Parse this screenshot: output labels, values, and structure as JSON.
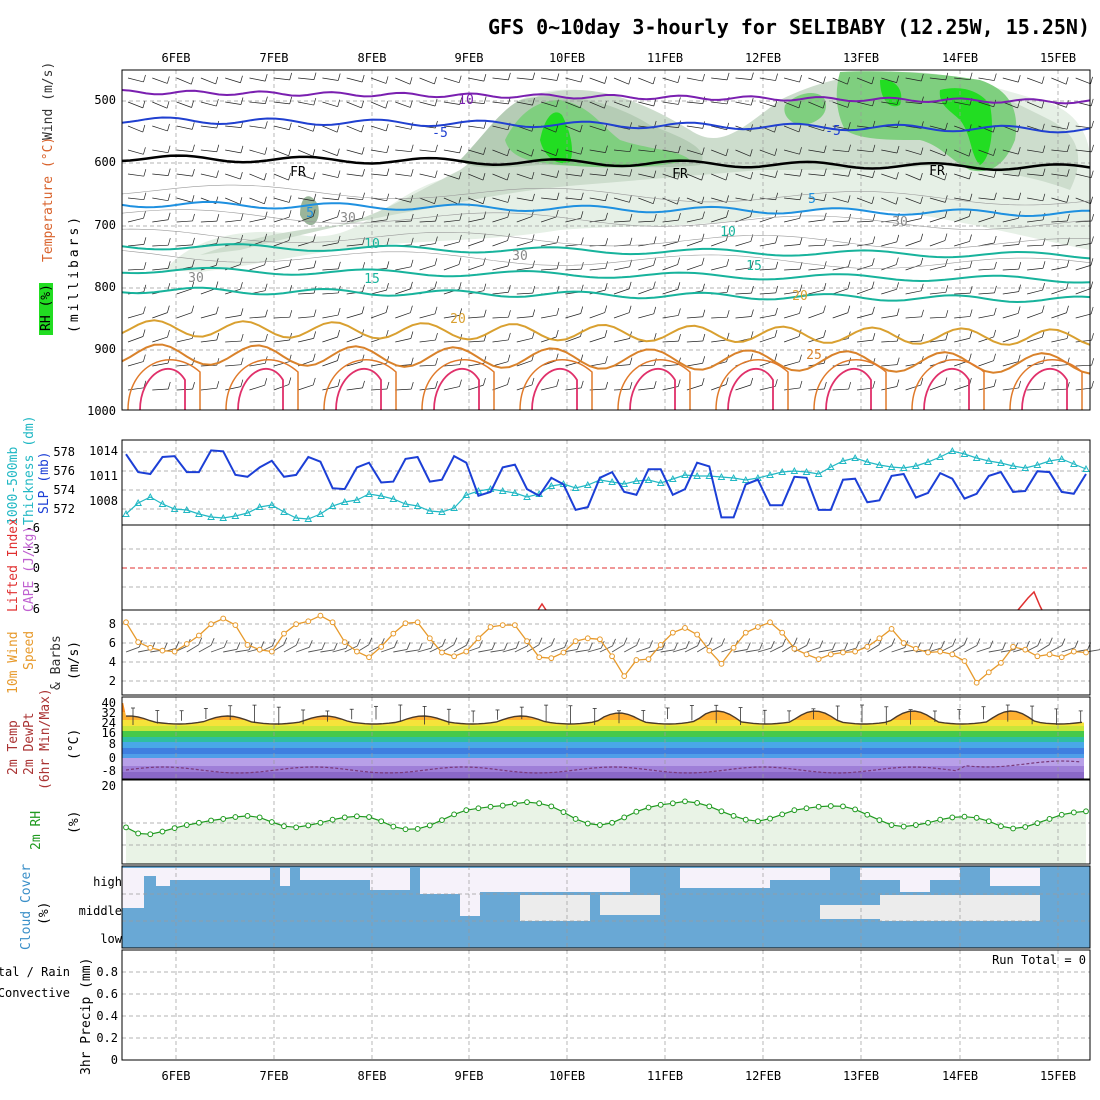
{
  "title": "GFS 0~10day 3-hourly for SELIBABY (12.25W, 15.25N)",
  "dates": [
    "6FEB",
    "7FEB",
    "8FEB",
    "9FEB",
    "10FEB",
    "11FEB",
    "12FEB",
    "13FEB",
    "14FEB",
    "15FEB"
  ],
  "colors": {
    "rh_green": "#22dd22",
    "slp": "#1c3fd6",
    "thickness": "#22b8c4",
    "wind_speed": "#e79a2c",
    "rh2m": "#1f9a1f",
    "cloud": "#69a8d5",
    "lifted_index": "#e03030",
    "cape": "#c060d0"
  },
  "panels": {
    "upper": {
      "labels": [
        {
          "text": "RH (%)",
          "color": "#1f9a1f"
        },
        {
          "text": "Temperature (°C)",
          "color": "#d9622b"
        },
        {
          "text": "Wind (m/s)",
          "color": "#333333"
        },
        {
          "text": "(millibars)",
          "color": "#000000"
        }
      ],
      "yticks": [
        "500",
        "600",
        "700",
        "800",
        "900",
        "1000"
      ],
      "contour_labels": [
        {
          "text": "10",
          "color": "#7a1fb0"
        },
        {
          "text": "-5",
          "color": "#2040d0"
        },
        {
          "text": "-5",
          "color": "#2040d0"
        },
        {
          "text": "FR",
          "color": "#000000"
        },
        {
          "text": "FR",
          "color": "#000000"
        },
        {
          "text": "FR",
          "color": "#000000"
        },
        {
          "text": "5",
          "color": "#1e90e0"
        },
        {
          "text": "5",
          "color": "#1e90e0"
        },
        {
          "text": "10",
          "color": "#17b39c"
        },
        {
          "text": "10",
          "color": "#17b39c"
        },
        {
          "text": "15",
          "color": "#17b39c"
        },
        {
          "text": "15",
          "color": "#17b39c"
        },
        {
          "text": "20",
          "color": "#d9a030"
        },
        {
          "text": "20",
          "color": "#d9a030"
        },
        {
          "text": "25",
          "color": "#d9822b"
        },
        {
          "text": "30",
          "color": "#888888"
        },
        {
          "text": "30",
          "color": "#888888"
        },
        {
          "text": "30",
          "color": "#888888"
        },
        {
          "text": "30",
          "color": "#888888"
        }
      ]
    },
    "slp_thickness": {
      "labels": [
        {
          "text": "SLP (mb)",
          "color": "#1c3fd6"
        },
        {
          "text": "1000-500mb",
          "color": "#22b8c4"
        },
        {
          "text": "Thickness (dm)",
          "color": "#22b8c4"
        }
      ],
      "yticks_left": [
        "578",
        "576",
        "574",
        "572"
      ],
      "yticks_right": [
        "1014",
        "1011",
        "1008"
      ]
    },
    "stability": {
      "labels": [
        {
          "text": "Lifted Index",
          "color": "#e03030"
        },
        {
          "text": "CAPE (J/kg)",
          "color": "#c060d0"
        }
      ],
      "yticks": [
        "-6",
        "-3",
        "0",
        "3",
        "6"
      ]
    },
    "wind10m": {
      "labels": [
        {
          "text": "10m Wind",
          "color": "#e79a2c"
        },
        {
          "text": "Speed",
          "color": "#e79a2c"
        },
        {
          "text": "& Barbs",
          "color": "#333333"
        },
        {
          "text": "(m/s)",
          "color": "#000000"
        }
      ],
      "yticks": [
        "8",
        "6",
        "4",
        "2"
      ]
    },
    "temp2m": {
      "labels": [
        {
          "text": "2m Temp",
          "color": "#a33"
        },
        {
          "text": "2m DewPt",
          "color": "#a33"
        },
        {
          "text": "(6hr Min/Max)",
          "color": "#a33"
        },
        {
          "text": "(°C)",
          "color": "#000000"
        }
      ],
      "yticks": [
        "40",
        "32",
        "24",
        "16",
        "8",
        "0",
        "-8"
      ]
    },
    "rh2m": {
      "labels": [
        {
          "text": "2m RH",
          "color": "#1f9a1f"
        },
        {
          "text": "(%)",
          "color": "#000000"
        }
      ],
      "yticks": [
        "20"
      ]
    },
    "cloud": {
      "labels": [
        {
          "text": "Cloud Cover",
          "color": "#3a8fc8"
        },
        {
          "text": "(%)",
          "color": "#000000"
        }
      ],
      "levels": [
        "high",
        "middle",
        "low"
      ]
    },
    "precip": {
      "labels": [
        {
          "text": "Total / Rain",
          "color": "#1f9a1f"
        },
        {
          "text": "Convective",
          "color": "#e03030"
        },
        {
          "text": "3hr Precip (mm)",
          "color": "#000000"
        }
      ],
      "yticks": [
        "0.8",
        "0.6",
        "0.4",
        "0.2",
        "0"
      ],
      "run_total": "Run Total = 0"
    }
  },
  "chart_data": [
    {
      "type": "line",
      "name": "slp",
      "ylim": [
        1006,
        1015
      ],
      "values": [
        1013.5,
        1011.6,
        1011.4,
        1013.2,
        1013.3,
        1011.6,
        1011.6,
        1013.9,
        1013.8,
        1011.3,
        1011.1,
        1012.1,
        1012.8,
        1011.1,
        1011.3,
        1013.2,
        1012.7,
        1009.9,
        1009.8,
        1012.1,
        1012.6,
        1010.5,
        1010.6,
        1013.0,
        1013.2,
        1010.6,
        1010.8,
        1013.3,
        1012.6,
        1009.1,
        1009.5,
        1012.1,
        1012.4,
        1009.8,
        1009.1,
        1011.0,
        1010.3,
        1007.6,
        1007.9,
        1011.0,
        1011.6,
        1009.5,
        1009.2,
        1011.9,
        1011.9,
        1009.2,
        1009.8,
        1012.6,
        1012.2,
        1006.8,
        1006.8,
        1010.3,
        1010.8,
        1008.1,
        1008.1,
        1011.1,
        1011.0,
        1007.6,
        1007.6,
        1010.8,
        1010.9,
        1008.4,
        1008.6,
        1011.2,
        1011.4,
        1008.9,
        1009.4,
        1011.5,
        1010.9,
        1008.8,
        1009.3,
        1011.2,
        1011.6,
        1009.5,
        1009.6,
        1011.7,
        1011.6,
        1009.5,
        1009.3,
        1011.4
      ]
    },
    {
      "type": "line",
      "name": "thickness",
      "ylim": [
        570.5,
        579
      ],
      "values": [
        571.6,
        572.7,
        573.3,
        572.6,
        572.1,
        572.0,
        571.6,
        571.3,
        571.2,
        571.4,
        571.7,
        572.3,
        572.5,
        571.8,
        571.2,
        571.1,
        571.6,
        572.4,
        572.8,
        573.0,
        573.6,
        573.4,
        573.1,
        572.6,
        572.4,
        571.9,
        571.8,
        572.2,
        573.5,
        573.9,
        574.1,
        573.9,
        573.7,
        573.3,
        573.6,
        574.4,
        574.6,
        574.2,
        574.5,
        575.0,
        574.8,
        574.6,
        574.9,
        575.0,
        574.7,
        575.1,
        575.5,
        575.4,
        575.4,
        575.3,
        575.2,
        575.0,
        575.2,
        575.5,
        575.8,
        575.9,
        575.8,
        575.6,
        576.3,
        576.9,
        577.2,
        576.8,
        576.5,
        576.3,
        576.2,
        576.4,
        576.8,
        577.3,
        577.9,
        577.6,
        577.2,
        576.9,
        576.7,
        576.4,
        576.2,
        576.5,
        576.9,
        577.1,
        576.6,
        576.1
      ]
    },
    {
      "type": "line",
      "name": "wind_speed_10m",
      "ylim": [
        0,
        9
      ],
      "values": [
        7.7,
        5.6,
        5.0,
        4.7,
        4.6,
        5.4,
        6.3,
        7.5,
        8.1,
        7.4,
        5.3,
        4.8,
        4.6,
        6.5,
        7.5,
        7.8,
        8.4,
        7.7,
        5.6,
        4.6,
        4.0,
        5.1,
        6.5,
        7.6,
        7.7,
        6.0,
        4.5,
        4.1,
        4.6,
        6.0,
        7.2,
        7.4,
        7.4,
        5.7,
        4.0,
        3.9,
        4.5,
        5.7,
        6.0,
        5.9,
        4.1,
        2.0,
        3.7,
        3.8,
        5.3,
        6.6,
        7.1,
        6.4,
        4.7,
        3.3,
        5.0,
        6.6,
        7.2,
        7.7,
        6.6,
        4.9,
        4.3,
        3.8,
        4.3,
        4.5,
        4.6,
        5.1,
        6.0,
        7.0,
        5.5,
        4.9,
        4.5,
        4.6,
        4.3,
        3.6,
        1.3,
        2.4,
        3.4,
        5.1,
        4.8,
        4.1,
        4.3,
        4.0,
        4.6,
        4.5
      ]
    },
    {
      "type": "line",
      "name": "rh_2m",
      "ylim": [
        0,
        22
      ],
      "values": [
        9.6,
        8.0,
        7.8,
        8.5,
        9.4,
        10.2,
        10.8,
        11.4,
        11.8,
        12.3,
        12.6,
        12.2,
        11.0,
        9.9,
        9.6,
        10.1,
        10.8,
        11.6,
        12.2,
        12.5,
        12.3,
        11.2,
        9.8,
        9.1,
        9.2,
        10.1,
        11.5,
        13.0,
        14.1,
        14.6,
        15.0,
        15.3,
        15.8,
        16.2,
        15.9,
        15.1,
        13.6,
        11.8,
        10.6,
        10.2,
        10.8,
        12.2,
        13.7,
        14.8,
        15.5,
        15.9,
        16.4,
        16.0,
        15.1,
        13.8,
        12.6,
        11.6,
        11.2,
        11.9,
        13.0,
        14.1,
        14.6,
        15.0,
        15.2,
        15.1,
        14.3,
        12.9,
        11.5,
        10.2,
        9.8,
        10.2,
        10.8,
        11.6,
        12.2,
        12.4,
        12.1,
        11.2,
        9.9,
        9.3,
        9.7,
        10.7,
        11.8,
        12.9,
        13.5,
        13.8
      ]
    }
  ]
}
